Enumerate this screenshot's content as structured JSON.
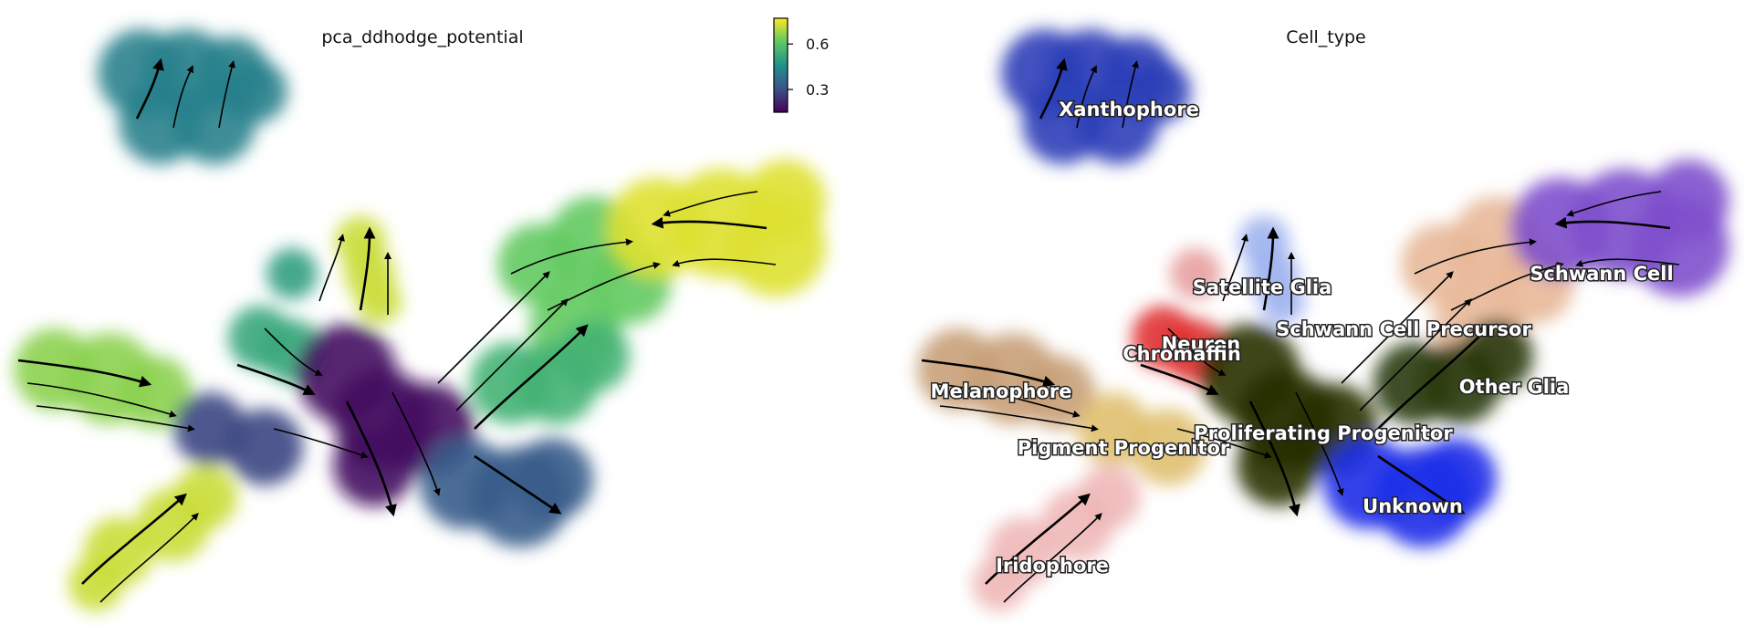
{
  "panels": {
    "left_title": "pca_ddhodge_potential",
    "right_title": "Cell_type"
  },
  "colorbar": {
    "ticks": [
      {
        "label": "0.6",
        "value": 0.6
      },
      {
        "label": "0.3",
        "value": 0.3
      }
    ],
    "range": [
      0.15,
      0.77
    ]
  },
  "chart_data": [
    {
      "type": "scatter",
      "title": "pca_ddhodge_potential",
      "xlabel": "",
      "ylabel": "",
      "color_scale": "viridis",
      "color_range": [
        0.15,
        0.77
      ],
      "grid": false,
      "legend": "colorbar top-right",
      "overlay": "velocity streamlines",
      "cluster_potential": [
        {
          "cluster": "Xanthophore",
          "value": 0.42
        },
        {
          "cluster": "Satellite Glia",
          "value": 0.72
        },
        {
          "cluster": "Neuron",
          "value": 0.5
        },
        {
          "cluster": "Chromaffin",
          "value": 0.52
        },
        {
          "cluster": "Schwann Cell Precursor",
          "value": 0.62
        },
        {
          "cluster": "Schwann Cell",
          "value": 0.74
        },
        {
          "cluster": "Other Glia",
          "value": 0.55
        },
        {
          "cluster": "Melanophore",
          "value": 0.66
        },
        {
          "cluster": "Pigment Progenitor",
          "value": 0.28
        },
        {
          "cluster": "Proliferating Progenitor",
          "value": 0.18
        },
        {
          "cluster": "Unknown",
          "value": 0.33
        },
        {
          "cluster": "Iridophore",
          "value": 0.72
        }
      ]
    },
    {
      "type": "scatter",
      "title": "Cell_type",
      "xlabel": "",
      "ylabel": "",
      "grid": false,
      "legend": "on data",
      "overlay": "velocity streamlines",
      "categories": [
        {
          "name": "Xanthophore",
          "color": "#2b3fb8"
        },
        {
          "name": "Satellite Glia",
          "color": "#9fb3f0"
        },
        {
          "name": "Neuron",
          "color": "#e8a0a0"
        },
        {
          "name": "Chromaffin",
          "color": "#e03030"
        },
        {
          "name": "Schwann Cell Precursor",
          "color": "#e8b898"
        },
        {
          "name": "Schwann Cell",
          "color": "#7e4fcc"
        },
        {
          "name": "Other Glia",
          "color": "#2a3a10"
        },
        {
          "name": "Melanophore",
          "color": "#c8a078"
        },
        {
          "name": "Pigment Progenitor",
          "color": "#e0c070"
        },
        {
          "name": "Proliferating Progenitor",
          "color": "#283000"
        },
        {
          "name": "Unknown",
          "color": "#1e2ee8"
        },
        {
          "name": "Iridophore",
          "color": "#f0b8b8"
        }
      ]
    }
  ]
}
